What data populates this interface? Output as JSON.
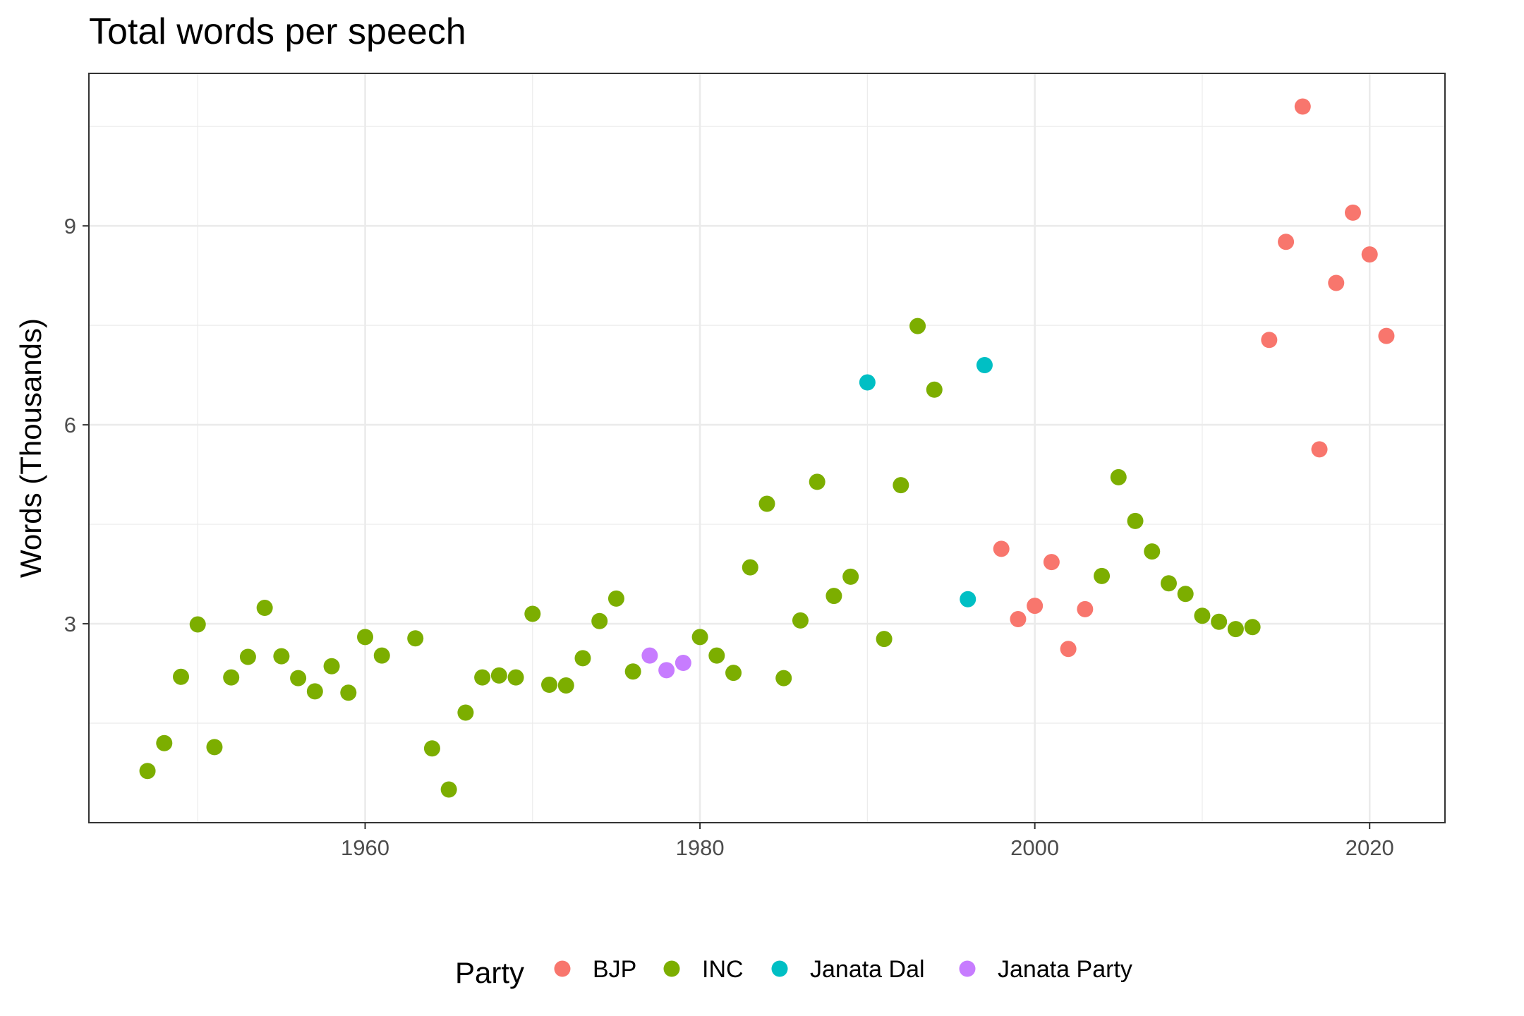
{
  "chart_data": {
    "type": "scatter",
    "title": "Total words per speech",
    "xlabel": "",
    "ylabel": "Words (Thousands)",
    "xlim": [
      1943.5,
      2024.5
    ],
    "ylim": [
      0.0,
      11.3
    ],
    "x_ticks": [
      1960,
      1980,
      2000,
      2020
    ],
    "y_ticks": [
      3,
      6,
      9
    ],
    "x_minor": [
      1950,
      1970,
      1990,
      2010
    ],
    "y_minor": [
      1.5,
      4.5,
      7.5,
      10.5
    ],
    "grid": true,
    "legend": {
      "title": "Party",
      "position": "bottom"
    },
    "colors": {
      "BJP": "#F8766D",
      "INC": "#7CAE00",
      "Janata Dal": "#00BFC4",
      "Janata Party": "#C77CFF"
    },
    "series": [
      {
        "name": "BJP",
        "points": [
          [
            1998,
            4.13
          ],
          [
            1999,
            3.07
          ],
          [
            2000,
            3.27
          ],
          [
            2001,
            3.93
          ],
          [
            2002,
            2.62
          ],
          [
            2003,
            3.22
          ],
          [
            2014,
            7.28
          ],
          [
            2015,
            8.76
          ],
          [
            2016,
            10.8
          ],
          [
            2017,
            5.63
          ],
          [
            2018,
            8.14
          ],
          [
            2019,
            9.2
          ],
          [
            2020,
            8.57
          ],
          [
            2021,
            7.34
          ]
        ]
      },
      {
        "name": "INC",
        "points": [
          [
            1947,
            0.78
          ],
          [
            1948,
            1.2
          ],
          [
            1949,
            2.2
          ],
          [
            1950,
            2.99
          ],
          [
            1951,
            1.14
          ],
          [
            1952,
            2.19
          ],
          [
            1953,
            2.5
          ],
          [
            1954,
            3.24
          ],
          [
            1955,
            2.51
          ],
          [
            1956,
            2.18
          ],
          [
            1957,
            1.98
          ],
          [
            1958,
            2.36
          ],
          [
            1959,
            1.96
          ],
          [
            1960,
            2.8
          ],
          [
            1961,
            2.52
          ],
          [
            1963,
            2.78
          ],
          [
            1964,
            1.12
          ],
          [
            1965,
            0.5
          ],
          [
            1966,
            1.66
          ],
          [
            1967,
            2.19
          ],
          [
            1968,
            2.22
          ],
          [
            1969,
            2.19
          ],
          [
            1970,
            3.15
          ],
          [
            1971,
            2.08
          ],
          [
            1972,
            2.07
          ],
          [
            1973,
            2.48
          ],
          [
            1974,
            3.04
          ],
          [
            1975,
            3.38
          ],
          [
            1976,
            2.28
          ],
          [
            1980,
            2.8
          ],
          [
            1981,
            2.52
          ],
          [
            1982,
            2.26
          ],
          [
            1983,
            3.85
          ],
          [
            1984,
            4.81
          ],
          [
            1985,
            2.18
          ],
          [
            1986,
            3.05
          ],
          [
            1987,
            5.14
          ],
          [
            1988,
            3.42
          ],
          [
            1989,
            3.71
          ],
          [
            1991,
            2.77
          ],
          [
            1992,
            5.09
          ],
          [
            1993,
            7.49
          ],
          [
            1994,
            6.53
          ],
          [
            2004,
            3.72
          ],
          [
            2005,
            5.21
          ],
          [
            2006,
            4.55
          ],
          [
            2007,
            4.09
          ],
          [
            2008,
            3.61
          ],
          [
            2009,
            3.45
          ],
          [
            2010,
            3.12
          ],
          [
            2011,
            3.03
          ],
          [
            2012,
            2.92
          ],
          [
            2013,
            2.95
          ]
        ]
      },
      {
        "name": "Janata Dal",
        "points": [
          [
            1990,
            6.64
          ],
          [
            1996,
            3.37
          ],
          [
            1997,
            6.9
          ]
        ]
      },
      {
        "name": "Janata Party",
        "points": [
          [
            1977,
            2.52
          ],
          [
            1978,
            2.3
          ],
          [
            1979,
            2.41
          ]
        ]
      }
    ]
  }
}
